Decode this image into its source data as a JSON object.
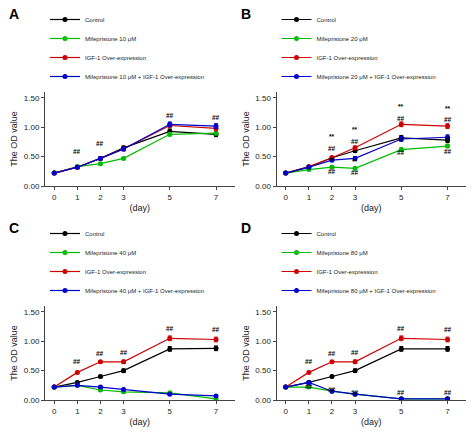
{
  "chart_data": [
    {
      "type": "line",
      "title": "A",
      "xlabel": "(day)",
      "ylabel": "The OD value",
      "x": [
        0,
        1,
        2,
        3,
        5,
        7
      ],
      "xlim": [
        -0.4,
        7.8
      ],
      "xticks": [
        0,
        1,
        2,
        3,
        5,
        7
      ],
      "ylim": [
        0.0,
        1.6
      ],
      "yticks": [
        {
          "value": 0.0,
          "label": "0.00"
        },
        {
          "value": 0.5,
          "label": "0.50"
        },
        {
          "value": 1.0,
          "label": "1.00"
        },
        {
          "value": 1.5,
          "label": "1.50"
        }
      ],
      "grid": false,
      "legend": "upper left",
      "marker": "circle",
      "line_style": "solid",
      "series": [
        {
          "name": "Control",
          "color": "#000000",
          "values": [
            0.22,
            0.32,
            0.47,
            0.65,
            0.93,
            0.88
          ],
          "yerr": [
            0.01,
            0.02,
            0.02,
            0.03,
            0.04,
            0.04
          ]
        },
        {
          "name": "Mifepristone 10 μM",
          "color": "#00bb00",
          "values": [
            0.22,
            0.33,
            0.38,
            0.47,
            0.88,
            0.9
          ],
          "yerr": [
            0.01,
            0.02,
            0.02,
            0.02,
            0.03,
            0.03
          ]
        },
        {
          "name": "IGF-1 Over-expression",
          "color": "#cc0000",
          "values": [
            0.22,
            0.32,
            0.47,
            0.63,
            1.03,
            0.98
          ],
          "yerr": [
            0.01,
            0.02,
            0.02,
            0.03,
            0.04,
            0.04
          ]
        },
        {
          "name": "Mifepristone 10 μM + IGF-1 Over-expression",
          "color": "#0000cc",
          "values": [
            0.22,
            0.32,
            0.47,
            0.63,
            1.05,
            1.02
          ],
          "yerr": [
            0.01,
            0.02,
            0.02,
            0.03,
            0.04,
            0.04
          ]
        }
      ],
      "annotations": [
        {
          "x": 1,
          "y": 0.5,
          "text": "##"
        },
        {
          "x": 2,
          "y": 0.63,
          "text": "##"
        },
        {
          "x": 5,
          "y": 1.11,
          "text": "##"
        },
        {
          "x": 7,
          "y": 1.07,
          "text": "##"
        }
      ]
    },
    {
      "type": "line",
      "title": "B",
      "xlabel": "(day)",
      "ylabel": "The OD value",
      "x": [
        0,
        1,
        2,
        3,
        5,
        7
      ],
      "xlim": [
        -0.4,
        7.8
      ],
      "xticks": [
        0,
        1,
        2,
        3,
        5,
        7
      ],
      "ylim": [
        0.0,
        1.6
      ],
      "yticks": [
        {
          "value": 0.0,
          "label": "0.00"
        },
        {
          "value": 0.5,
          "label": "0.50"
        },
        {
          "value": 1.0,
          "label": "1.00"
        },
        {
          "value": 1.5,
          "label": "1.50"
        }
      ],
      "grid": false,
      "legend": "upper left",
      "marker": "circle",
      "line_style": "solid",
      "series": [
        {
          "name": "Control",
          "color": "#000000",
          "values": [
            0.22,
            0.32,
            0.48,
            0.6,
            0.82,
            0.78
          ],
          "yerr": [
            0.01,
            0.02,
            0.02,
            0.03,
            0.04,
            0.04
          ]
        },
        {
          "name": "Mifepristone 20 μM",
          "color": "#00bb00",
          "values": [
            0.22,
            0.28,
            0.32,
            0.3,
            0.62,
            0.68
          ],
          "yerr": [
            0.01,
            0.02,
            0.02,
            0.02,
            0.03,
            0.03
          ]
        },
        {
          "name": "IGF-1 Over-expression",
          "color": "#cc0000",
          "values": [
            0.22,
            0.33,
            0.48,
            0.65,
            1.05,
            1.02
          ],
          "yerr": [
            0.01,
            0.02,
            0.02,
            0.03,
            0.04,
            0.04
          ]
        },
        {
          "name": "Mifepristone 20 μM + IGF-1 Over-expression",
          "color": "#0000cc",
          "values": [
            0.22,
            0.32,
            0.44,
            0.47,
            0.8,
            0.83
          ],
          "yerr": [
            0.01,
            0.02,
            0.02,
            0.03,
            0.04,
            0.04
          ]
        }
      ],
      "annotations": [
        {
          "x": 2,
          "y": 0.6,
          "text": "**"
        },
        {
          "x": 2,
          "y": 0.55,
          "text": "##"
        },
        {
          "x": 2,
          "y": 0.2,
          "text": "**"
        },
        {
          "x": 2,
          "y": 0.15,
          "text": "##"
        },
        {
          "x": 3,
          "y": 0.72,
          "text": "**"
        },
        {
          "x": 3,
          "y": 0.67,
          "text": "##"
        },
        {
          "x": 3,
          "y": 0.18,
          "text": "**"
        },
        {
          "x": 3,
          "y": 0.13,
          "text": "##"
        },
        {
          "x": 5,
          "y": 1.11,
          "text": "**"
        },
        {
          "x": 5,
          "y": 1.06,
          "text": "##"
        },
        {
          "x": 5,
          "y": 0.53,
          "text": "**"
        },
        {
          "x": 5,
          "y": 0.48,
          "text": "##"
        },
        {
          "x": 7,
          "y": 1.08,
          "text": "**"
        },
        {
          "x": 7,
          "y": 1.03,
          "text": "##"
        },
        {
          "x": 7,
          "y": 0.55,
          "text": "**"
        },
        {
          "x": 7,
          "y": 0.5,
          "text": "##"
        }
      ]
    },
    {
      "type": "line",
      "title": "C",
      "xlabel": "(day)",
      "ylabel": "The OD value",
      "x": [
        0,
        1,
        2,
        3,
        5,
        7
      ],
      "xlim": [
        -0.4,
        7.8
      ],
      "xticks": [
        0,
        1,
        2,
        3,
        5,
        7
      ],
      "ylim": [
        0.0,
        1.6
      ],
      "yticks": [
        {
          "value": 0.0,
          "label": "0.00"
        },
        {
          "value": 0.5,
          "label": "0.50"
        },
        {
          "value": 1.0,
          "label": "1.00"
        },
        {
          "value": 1.5,
          "label": "1.50"
        }
      ],
      "grid": false,
      "legend": "upper left",
      "marker": "circle",
      "line_style": "solid",
      "series": [
        {
          "name": "Control",
          "color": "#000000",
          "values": [
            0.22,
            0.3,
            0.4,
            0.5,
            0.87,
            0.88
          ],
          "yerr": [
            0.01,
            0.02,
            0.02,
            0.03,
            0.04,
            0.04
          ]
        },
        {
          "name": "Mifepristone 40 μM",
          "color": "#00bb00",
          "values": [
            0.22,
            0.25,
            0.17,
            0.14,
            0.12,
            0.02
          ],
          "yerr": [
            0.01,
            0.02,
            0.02,
            0.02,
            0.03,
            0.02
          ]
        },
        {
          "name": "IGF-1 Over-expression",
          "color": "#cc0000",
          "values": [
            0.22,
            0.47,
            0.65,
            0.65,
            1.05,
            1.03
          ],
          "yerr": [
            0.01,
            0.02,
            0.02,
            0.03,
            0.04,
            0.04
          ]
        },
        {
          "name": "Mifepristone 40 μM + IGF-1 Over-expression",
          "color": "#0000cc",
          "values": [
            0.22,
            0.25,
            0.22,
            0.18,
            0.1,
            0.07
          ],
          "yerr": [
            0.01,
            0.02,
            0.02,
            0.02,
            0.02,
            0.02
          ]
        }
      ],
      "annotations": [
        {
          "x": 1,
          "y": 0.57,
          "text": "##"
        },
        {
          "x": 2,
          "y": 0.7,
          "text": "##"
        },
        {
          "x": 3,
          "y": 0.72,
          "text": "##"
        },
        {
          "x": 5,
          "y": 1.12,
          "text": "##"
        },
        {
          "x": 7,
          "y": 1.1,
          "text": "##"
        }
      ]
    },
    {
      "type": "line",
      "title": "D",
      "xlabel": "(day)",
      "ylabel": "The OD value",
      "x": [
        0,
        1,
        2,
        3,
        5,
        7
      ],
      "xlim": [
        -0.4,
        7.8
      ],
      "xticks": [
        0,
        1,
        2,
        3,
        5,
        7
      ],
      "ylim": [
        0.0,
        1.6
      ],
      "yticks": [
        {
          "value": 0.0,
          "label": "0.00"
        },
        {
          "value": 0.5,
          "label": "0.50"
        },
        {
          "value": 1.0,
          "label": "1.00"
        },
        {
          "value": 1.5,
          "label": "1.50"
        }
      ],
      "grid": false,
      "legend": "upper left",
      "marker": "circle",
      "line_style": "solid",
      "series": [
        {
          "name": "Control",
          "color": "#000000",
          "values": [
            0.22,
            0.3,
            0.4,
            0.5,
            0.87,
            0.87
          ],
          "yerr": [
            0.01,
            0.02,
            0.02,
            0.03,
            0.04,
            0.04
          ]
        },
        {
          "name": "Mifepristone 80 μM",
          "color": "#00bb00",
          "values": [
            0.22,
            0.22,
            0.15,
            0.1,
            0.02,
            0.02
          ],
          "yerr": [
            0.01,
            0.02,
            0.02,
            0.02,
            0.02,
            0.02
          ]
        },
        {
          "name": "IGF-1 Over-expression",
          "color": "#cc0000",
          "values": [
            0.22,
            0.47,
            0.65,
            0.65,
            1.05,
            1.03
          ],
          "yerr": [
            0.01,
            0.02,
            0.02,
            0.03,
            0.04,
            0.04
          ]
        },
        {
          "name": "Mifepristone 80 μM + IGF-1 Over-expression",
          "color": "#0000cc",
          "values": [
            0.22,
            0.3,
            0.15,
            0.1,
            0.02,
            0.02
          ],
          "yerr": [
            0.01,
            0.02,
            0.02,
            0.02,
            0.02,
            0.02
          ]
        }
      ],
      "annotations": [
        {
          "x": 1,
          "y": 0.57,
          "text": "##"
        },
        {
          "x": 2,
          "y": 0.7,
          "text": "##"
        },
        {
          "x": 3,
          "y": 0.72,
          "text": "##"
        },
        {
          "x": 5,
          "y": 1.12,
          "text": "##"
        },
        {
          "x": 7,
          "y": 1.1,
          "text": "##"
        },
        {
          "x": 1,
          "y": 0.14,
          "text": "##"
        },
        {
          "x": 2,
          "y": 0.08,
          "text": "##"
        },
        {
          "x": 3,
          "y": 0.04,
          "text": "##"
        },
        {
          "x": 5,
          "y": 0.04,
          "text": "##"
        },
        {
          "x": 7,
          "y": 0.04,
          "text": "##"
        }
      ]
    }
  ]
}
